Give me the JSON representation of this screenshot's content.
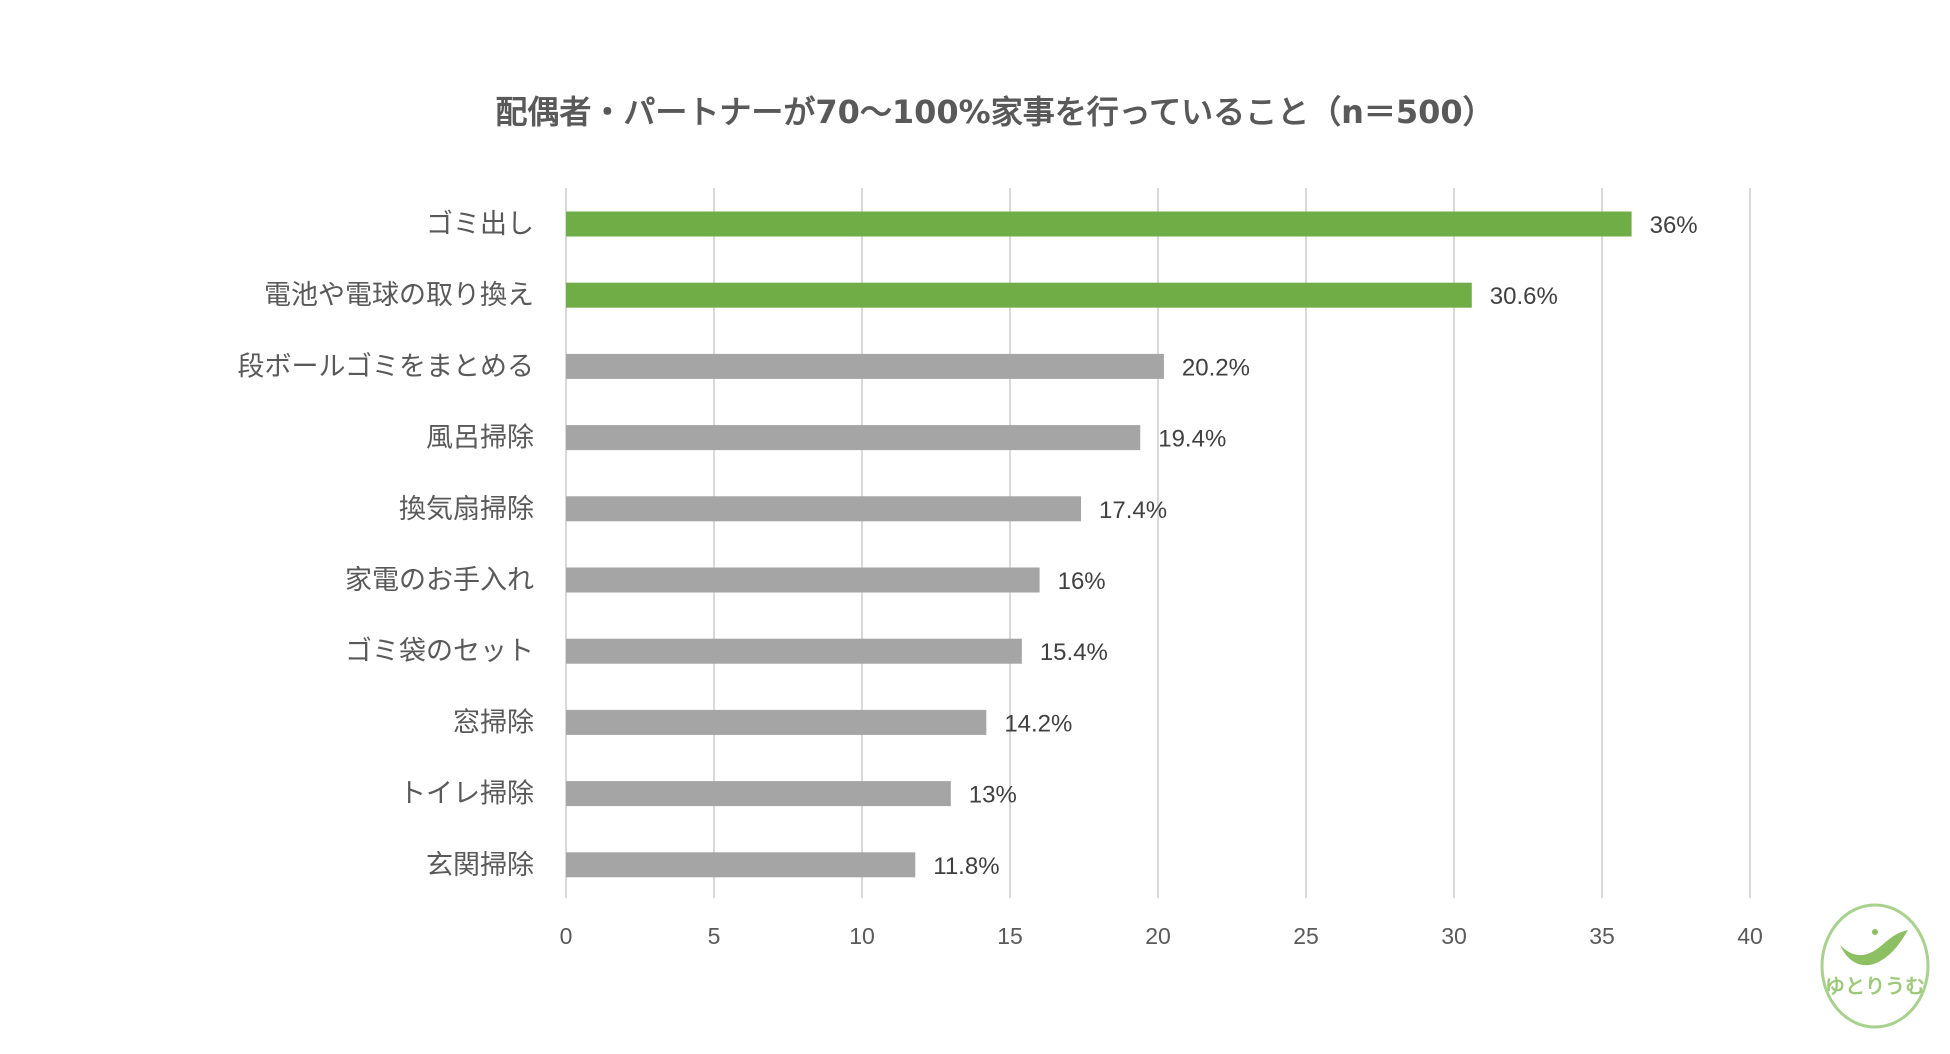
{
  "chart_data": {
    "type": "bar",
    "orientation": "horizontal",
    "title": "配偶者・パートナーが70～100%家事を行っていること（n＝500）",
    "categories": [
      "ゴミ出し",
      "電池や電球の取り換え",
      "段ボールゴミをまとめる",
      "風呂掃除",
      "換気扇掃除",
      "家電のお手入れ",
      "ゴミ袋のセット",
      "窓掃除",
      "トイレ掃除",
      "玄関掃除"
    ],
    "values": [
      36,
      30.6,
      20.2,
      19.4,
      17.4,
      16,
      15.4,
      14.2,
      13,
      11.8
    ],
    "data_labels": [
      "36%",
      "30.6%",
      "20.2%",
      "19.4%",
      "17.4%",
      "16%",
      "15.4%",
      "14.2%",
      "13%",
      "11.8%"
    ],
    "highlight_count": 2,
    "colors": {
      "highlight": "#70ad47",
      "normal": "#a5a5a5"
    },
    "xlim": [
      0,
      40
    ],
    "xticks": [
      0,
      5,
      10,
      15,
      20,
      25,
      30,
      35,
      40
    ],
    "tick_labels": [
      "0",
      "5",
      "10",
      "15",
      "20",
      "25",
      "30",
      "35",
      "40"
    ],
    "grid": true,
    "xlabel": "",
    "ylabel": ""
  },
  "logo": {
    "text": "ゆとりうむ",
    "icon": "bird-egg-logo",
    "color": "#9cc97a"
  }
}
